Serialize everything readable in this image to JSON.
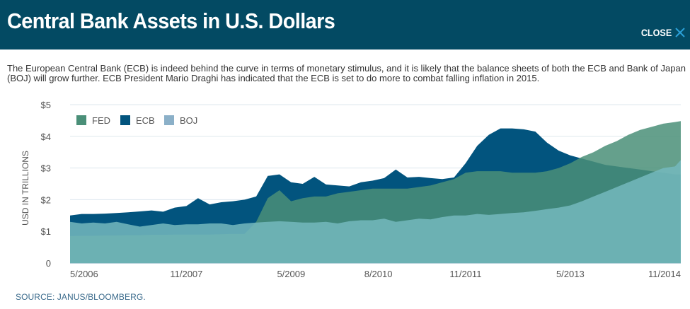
{
  "header": {
    "title": "Central Bank Assets in U.S. Dollars",
    "close_label": "CLOSE",
    "close_icon": "close-x-icon"
  },
  "description": "The European Central Bank (ECB) is indeed behind the curve in terms of monetary stimulus, and it is likely that the balance sheets of both the ECB and Bank of Japan (BOJ) will grow further. ECB President Mario Draghi has indicated that the ECB is set to do more to combat falling inflation in 2015.",
  "source": "SOURCE: JANUS/BLOOMBERG.",
  "colors": {
    "header_bg": "#034a63",
    "close_icon": "#2a9fd6",
    "FED": "#4a8f78",
    "ECB": "#02547e",
    "BOJ": "#8bb0c8",
    "gridline": "#dde7ee"
  },
  "chart_data": {
    "type": "area",
    "title": "Central Bank Assets in U.S. Dollars",
    "xlabel": "",
    "ylabel": "USD IN TRILLIONS",
    "ylim": [
      0,
      5
    ],
    "yticks": [
      0,
      1,
      2,
      3,
      4,
      5
    ],
    "ytick_labels": [
      "0",
      "$1",
      "$2",
      "$3",
      "$4",
      "$5"
    ],
    "grid": true,
    "legend_position": "top-left",
    "x_start": "3/2006",
    "x_end": "12/2014",
    "xtick_labels": [
      "5/2006",
      "11/2007",
      "5/2009",
      "8/2010",
      "11/2011",
      "5/2013",
      "11/2014"
    ],
    "xtick_months": [
      2,
      20,
      38,
      53,
      68,
      86,
      104
    ],
    "x_months": [
      0,
      2,
      4,
      6,
      8,
      10,
      12,
      14,
      16,
      18,
      20,
      22,
      24,
      26,
      28,
      30,
      32,
      34,
      36,
      38,
      40,
      42,
      44,
      46,
      48,
      50,
      52,
      54,
      56,
      58,
      60,
      62,
      64,
      66,
      68,
      70,
      72,
      74,
      76,
      78,
      80,
      82,
      84,
      86,
      88,
      90,
      92,
      94,
      96,
      98,
      100,
      102,
      104,
      105
    ],
    "series": [
      {
        "name": "ECB",
        "values": [
          1.5,
          1.55,
          1.55,
          1.56,
          1.58,
          1.6,
          1.63,
          1.66,
          1.62,
          1.75,
          1.8,
          2.05,
          1.85,
          1.92,
          1.95,
          2.0,
          2.1,
          2.75,
          2.8,
          2.55,
          2.5,
          2.72,
          2.48,
          2.45,
          2.42,
          2.55,
          2.6,
          2.68,
          2.95,
          2.7,
          2.72,
          2.68,
          2.65,
          2.7,
          3.15,
          3.7,
          4.05,
          4.25,
          4.25,
          4.22,
          4.15,
          3.8,
          3.55,
          3.4,
          3.3,
          3.2,
          3.1,
          3.05,
          3.0,
          2.95,
          2.9,
          2.85,
          2.8,
          2.8
        ]
      },
      {
        "name": "FED",
        "values": [
          0.85,
          0.86,
          0.86,
          0.87,
          0.87,
          0.88,
          0.88,
          0.89,
          0.89,
          0.9,
          0.9,
          0.9,
          0.9,
          0.91,
          0.92,
          0.92,
          1.3,
          2.05,
          2.3,
          1.95,
          2.05,
          2.1,
          2.1,
          2.2,
          2.25,
          2.3,
          2.35,
          2.35,
          2.35,
          2.35,
          2.4,
          2.45,
          2.55,
          2.65,
          2.85,
          2.9,
          2.9,
          2.9,
          2.85,
          2.85,
          2.85,
          2.9,
          3.0,
          3.15,
          3.35,
          3.5,
          3.7,
          3.85,
          4.05,
          4.2,
          4.3,
          4.4,
          4.45,
          4.48
        ]
      },
      {
        "name": "BOJ",
        "values": [
          1.3,
          1.25,
          1.28,
          1.25,
          1.3,
          1.22,
          1.15,
          1.2,
          1.25,
          1.2,
          1.22,
          1.22,
          1.25,
          1.25,
          1.2,
          1.25,
          1.28,
          1.3,
          1.32,
          1.3,
          1.28,
          1.28,
          1.3,
          1.25,
          1.32,
          1.35,
          1.35,
          1.4,
          1.3,
          1.35,
          1.4,
          1.38,
          1.45,
          1.5,
          1.5,
          1.55,
          1.52,
          1.55,
          1.58,
          1.6,
          1.65,
          1.7,
          1.75,
          1.82,
          1.95,
          2.1,
          2.25,
          2.4,
          2.55,
          2.7,
          2.85,
          3.0,
          3.05,
          3.25
        ]
      }
    ]
  }
}
